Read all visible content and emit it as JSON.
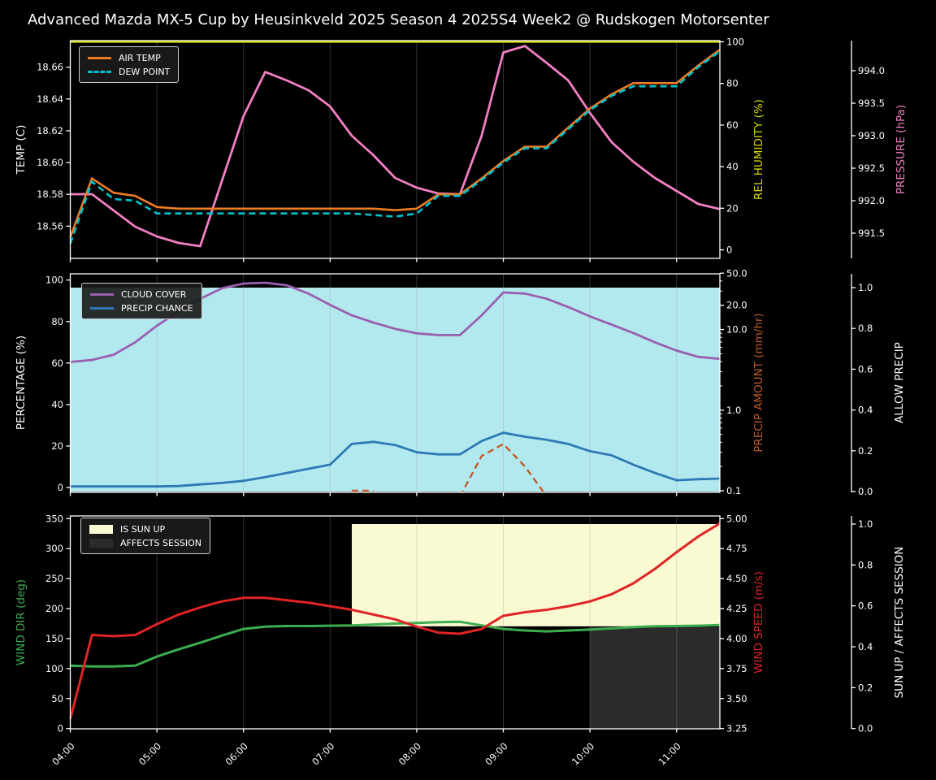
{
  "title": "Advanced Mazda MX-5 Cup by Heusinkveld 2025 Season 4 2025S4 Week2 @ Rudskogen Motorsenter",
  "x_hour_ticks": [
    "04:00",
    "05:00",
    "06:00",
    "07:00",
    "08:00",
    "09:00",
    "10:00",
    "11:00"
  ],
  "chart_data": [
    {
      "type": "line",
      "title": "temperature-humidity-pressure-panel",
      "x": [
        "04:00",
        "04:15",
        "04:30",
        "04:45",
        "05:00",
        "05:15",
        "05:30",
        "05:45",
        "06:00",
        "06:15",
        "06:30",
        "06:45",
        "07:00",
        "07:15",
        "07:30",
        "07:45",
        "08:00",
        "08:15",
        "08:30",
        "08:45",
        "09:00",
        "09:15",
        "09:30",
        "09:45",
        "10:00",
        "10:15",
        "10:30",
        "10:45",
        "11:00",
        "11:15",
        "11:30"
      ],
      "axes": {
        "left": {
          "label": "TEMP (C)",
          "ticks": [
            "18.56",
            "18.58",
            "18.60",
            "18.62",
            "18.64",
            "18.66"
          ]
        },
        "right1": {
          "label": "REL HUMIDITY (%)",
          "ticks": [
            "0",
            "20",
            "40",
            "60",
            "80",
            "100"
          ],
          "range": [
            0,
            100
          ]
        },
        "right2": {
          "label": "PRESSURE (hPa)",
          "ticks": [
            "991.5",
            "992.0",
            "992.5",
            "993.0",
            "993.5",
            "994.0"
          ]
        }
      },
      "series": [
        {
          "name": "AIR TEMP",
          "yaxis": "TEMP (C)",
          "color": "#ee7d21",
          "style": "solid",
          "values": [
            18.553,
            18.59,
            18.581,
            18.579,
            18.572,
            18.571,
            18.571,
            18.571,
            18.571,
            18.571,
            18.571,
            18.571,
            18.571,
            18.571,
            18.571,
            18.57,
            18.571,
            18.58,
            18.58,
            18.59,
            18.601,
            18.61,
            18.61,
            18.622,
            18.634,
            18.643,
            18.65,
            18.65,
            18.65,
            18.661,
            18.671
          ]
        },
        {
          "name": "DEW POINT",
          "yaxis": "TEMP (C)",
          "color": "#00c2cc",
          "style": "dashed",
          "values": [
            18.549,
            18.588,
            18.577,
            18.576,
            18.568,
            18.568,
            18.568,
            18.568,
            18.568,
            18.568,
            18.568,
            18.568,
            18.568,
            18.568,
            18.567,
            18.566,
            18.568,
            18.579,
            18.579,
            18.589,
            18.6,
            18.609,
            18.609,
            18.621,
            18.633,
            18.642,
            18.648,
            18.648,
            18.648,
            18.66,
            18.67
          ]
        },
        {
          "name": "REL HUMIDITY",
          "yaxis": "REL HUMIDITY (%)",
          "color": "#d9d900",
          "style": "solid",
          "values": [
            100,
            100,
            100,
            100,
            100,
            100,
            100,
            100,
            100,
            100,
            100,
            100,
            100,
            100,
            100,
            100,
            100,
            100,
            100,
            100,
            100,
            100,
            100,
            100,
            100,
            100,
            100,
            100,
            100,
            100,
            100
          ]
        },
        {
          "name": "PRESSURE",
          "yaxis": "PRESSURE (hPa)",
          "color": "#f27fc3",
          "style": "solid",
          "values": [
            992.1,
            992.1,
            991.85,
            991.6,
            991.45,
            991.35,
            991.3,
            992.3,
            993.3,
            993.98,
            993.85,
            993.7,
            993.45,
            993.0,
            992.7,
            992.35,
            992.2,
            992.11,
            992.1,
            993.0,
            994.28,
            994.38,
            994.12,
            993.85,
            993.35,
            992.9,
            992.6,
            992.35,
            992.15,
            991.95,
            991.87
          ]
        }
      ]
    },
    {
      "type": "line",
      "title": "cloud-precip-panel",
      "x": [
        "04:00",
        "04:15",
        "04:30",
        "04:45",
        "05:00",
        "05:15",
        "05:30",
        "05:45",
        "06:00",
        "06:15",
        "06:30",
        "06:45",
        "07:00",
        "07:15",
        "07:30",
        "07:45",
        "08:00",
        "08:15",
        "08:30",
        "08:45",
        "09:00",
        "09:15",
        "09:30",
        "09:45",
        "10:00",
        "10:15",
        "10:30",
        "10:45",
        "11:00",
        "11:15",
        "11:30"
      ],
      "axes": {
        "left": {
          "label": "PERCENTAGE (%)",
          "ticks": [
            "0",
            "20",
            "40",
            "60",
            "80",
            "100"
          ],
          "range": [
            0,
            100
          ]
        },
        "right1": {
          "label": "PRECIP AMOUNT (mm/hr)",
          "ticks": [
            "0.1",
            "1.0",
            "10.0",
            "20.0",
            "50.0"
          ],
          "scale": "log"
        },
        "right2": {
          "label": "ALLOW PRECIP",
          "ticks": [
            "0.0",
            "0.2",
            "0.4",
            "0.6",
            "0.8",
            "1.0"
          ],
          "range": [
            0,
            1
          ]
        }
      },
      "series": [
        {
          "name": "CLOUD COVER",
          "yaxis": "PERCENTAGE (%)",
          "color": "#9a5fb0",
          "style": "solid",
          "values": [
            60.5,
            61.5,
            64,
            70,
            78,
            85,
            91,
            96,
            98.3,
            98.7,
            97.5,
            93.5,
            88,
            83,
            79.5,
            76.5,
            74.3,
            73.5,
            73.5,
            83,
            94,
            93.5,
            91,
            87,
            82.5,
            78.5,
            74.5,
            70,
            66,
            63,
            62
          ]
        },
        {
          "name": "PRECIP CHANCE",
          "yaxis": "PERCENTAGE (%)",
          "color": "#2e78b5",
          "style": "solid",
          "values": [
            0.5,
            0.5,
            0.5,
            0.5,
            0.5,
            0.7,
            1.5,
            2.2,
            3.2,
            5,
            7,
            9,
            11,
            21,
            22,
            20.5,
            17,
            16,
            16,
            22.4,
            26.4,
            24.5,
            23,
            21,
            17.5,
            15.5,
            11,
            7,
            3.5,
            4,
            4.3
          ]
        },
        {
          "name": "PRECIP AMOUNT",
          "yaxis": "PRECIP AMOUNT (mm/hr)",
          "color": "#bf5b28",
          "style": "dashed",
          "values": [
            null,
            null,
            null,
            null,
            null,
            null,
            null,
            null,
            null,
            null,
            null,
            null,
            null,
            0.1,
            0.1,
            null,
            null,
            null,
            0.085,
            0.27,
            0.38,
            0.2,
            0.085,
            null,
            null,
            null,
            null,
            null,
            null,
            null,
            null
          ]
        },
        {
          "name": "ALLOW PRECIP",
          "yaxis": "ALLOW PRECIP",
          "color": "#b2e9ef",
          "style": "fill",
          "values": [
            1,
            1,
            1,
            1,
            1,
            1,
            1,
            1,
            1,
            1,
            1,
            1,
            1,
            1,
            1,
            1,
            1,
            1,
            1,
            1,
            1,
            1,
            1,
            1,
            1,
            1,
            1,
            1,
            1,
            1,
            1
          ]
        }
      ]
    },
    {
      "type": "line",
      "title": "wind-sun-panel",
      "x": [
        "04:00",
        "04:15",
        "04:30",
        "04:45",
        "05:00",
        "05:15",
        "05:30",
        "05:45",
        "06:00",
        "06:15",
        "06:30",
        "06:45",
        "07:00",
        "07:15",
        "07:30",
        "07:45",
        "08:00",
        "08:15",
        "08:30",
        "08:45",
        "09:00",
        "09:15",
        "09:30",
        "09:45",
        "10:00",
        "10:15",
        "10:30",
        "10:45",
        "11:00",
        "11:15",
        "11:30"
      ],
      "axes": {
        "left": {
          "label": "WIND DIR (deg)",
          "ticks": [
            "0",
            "50",
            "100",
            "150",
            "200",
            "250",
            "300",
            "350"
          ],
          "range": [
            0,
            360
          ]
        },
        "right1": {
          "label": "WIND SPEED (m/s)",
          "ticks": [
            "3.25",
            "3.50",
            "3.75",
            "4.00",
            "4.25",
            "4.50",
            "4.75",
            "5.00"
          ]
        },
        "right2": {
          "label": "SUN UP / AFFECTS SESSION",
          "ticks": [
            "0.0",
            "0.2",
            "0.4",
            "0.6",
            "0.8",
            "1.0"
          ],
          "range": [
            0,
            1
          ]
        }
      },
      "series": [
        {
          "name": "WIND DIR",
          "yaxis": "WIND DIR (deg)",
          "color": "#3cad4e",
          "style": "solid",
          "values": [
            105,
            103.5,
            103.5,
            105,
            120,
            132,
            143,
            155,
            166,
            170,
            171,
            171,
            171.5,
            172,
            173.5,
            175,
            176,
            177.5,
            178,
            172,
            166,
            163.5,
            162,
            163.5,
            165,
            167,
            169,
            170.5,
            171,
            171.5,
            172.5
          ]
        },
        {
          "name": "WIND SPEED",
          "yaxis": "WIND SPEED (m/s)",
          "color": "#e02325",
          "style": "solid",
          "values": [
            3.33,
            4.03,
            4.02,
            4.03,
            4.12,
            4.2,
            4.26,
            4.31,
            4.34,
            4.34,
            4.32,
            4.3,
            4.27,
            4.24,
            4.2,
            4.16,
            4.1,
            4.05,
            4.04,
            4.08,
            4.19,
            4.22,
            4.24,
            4.27,
            4.31,
            4.37,
            4.46,
            4.58,
            4.72,
            4.85,
            4.96
          ]
        },
        {
          "name": "IS SUN UP",
          "yaxis": "SUN UP / AFFECTS SESSION",
          "color": "#fafad2",
          "style": "boolfill",
          "values": [
            0,
            0,
            0,
            0,
            0,
            0,
            0,
            0,
            0,
            0,
            0,
            0,
            0,
            1,
            1,
            1,
            1,
            1,
            1,
            1,
            1,
            1,
            1,
            1,
            1,
            1,
            1,
            1,
            1,
            1,
            1
          ]
        },
        {
          "name": "AFFECTS SESSION",
          "yaxis": "SUN UP / AFFECTS SESSION",
          "color": "#2b2b2b",
          "style": "boolfill",
          "values": [
            0,
            0,
            0,
            0,
            0,
            0,
            0,
            0,
            0,
            0,
            0,
            0,
            0,
            0,
            0,
            0,
            0,
            0,
            0,
            0,
            0,
            0,
            0,
            0,
            1,
            1,
            1,
            1,
            1,
            1,
            1
          ]
        }
      ]
    }
  ]
}
